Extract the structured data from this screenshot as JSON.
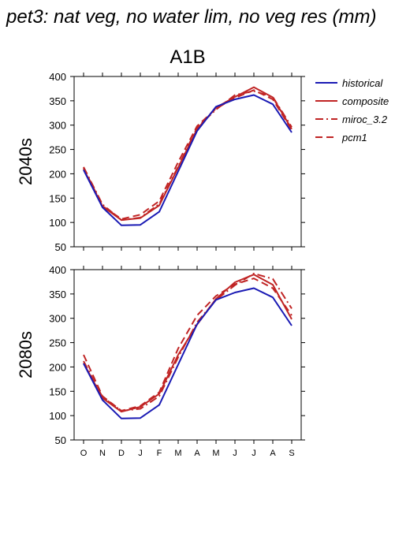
{
  "figure": {
    "title": "pet3: nat veg, no water lim, no veg res (mm)",
    "scenario": "A1B"
  },
  "colors": {
    "historical": "#1a1ab4",
    "projection": "#c02424"
  },
  "chart_data": [
    {
      "type": "line",
      "ylabel": "2040s",
      "categories": [
        "O",
        "N",
        "D",
        "J",
        "F",
        "M",
        "A",
        "M",
        "J",
        "J",
        "A",
        "S"
      ],
      "yticks": [
        50,
        100,
        150,
        200,
        250,
        300,
        350,
        400
      ],
      "ylim": [
        50,
        400
      ],
      "series": [
        {
          "name": "historical",
          "color": "#1a1ab4",
          "dash": "solid",
          "values": [
            208,
            131,
            94,
            95,
            122,
            205,
            288,
            338,
            353,
            362,
            343,
            285
          ]
        },
        {
          "name": "composite",
          "color": "#c02424",
          "dash": "solid",
          "values": [
            210,
            133,
            105,
            109,
            135,
            213,
            292,
            336,
            358,
            378,
            357,
            292
          ]
        },
        {
          "name": "miroc_3.2",
          "color": "#c02424",
          "dash": "dashdot",
          "values": [
            214,
            137,
            105,
            110,
            138,
            215,
            295,
            332,
            362,
            370,
            358,
            296
          ]
        },
        {
          "name": "pcm1",
          "color": "#c02424",
          "dash": "dashed",
          "values": [
            212,
            134,
            107,
            116,
            144,
            224,
            298,
            334,
            356,
            372,
            353,
            290
          ]
        }
      ]
    },
    {
      "type": "line",
      "ylabel": "2080s",
      "categories": [
        "O",
        "N",
        "D",
        "J",
        "F",
        "M",
        "A",
        "M",
        "J",
        "J",
        "A",
        "S"
      ],
      "yticks": [
        50,
        100,
        150,
        200,
        250,
        300,
        350,
        400
      ],
      "ylim": [
        50,
        400
      ],
      "series": [
        {
          "name": "historical",
          "color": "#1a1ab4",
          "dash": "solid",
          "values": [
            207,
            132,
            94,
            95,
            122,
            205,
            288,
            338,
            353,
            362,
            343,
            285
          ]
        },
        {
          "name": "composite",
          "color": "#c02424",
          "dash": "solid",
          "values": [
            208,
            136,
            108,
            118,
            145,
            225,
            287,
            340,
            374,
            390,
            369,
            298
          ]
        },
        {
          "name": "miroc_3.2",
          "color": "#c02424",
          "dash": "dashdot",
          "values": [
            212,
            138,
            110,
            114,
            140,
            220,
            292,
            338,
            368,
            392,
            381,
            320
          ]
        },
        {
          "name": "pcm1",
          "color": "#c02424",
          "dash": "dashed",
          "values": [
            225,
            140,
            110,
            120,
            148,
            238,
            306,
            346,
            370,
            382,
            362,
            306
          ]
        }
      ]
    }
  ],
  "legend": [
    {
      "label": "historical",
      "color": "#1a1ab4",
      "dash": "solid"
    },
    {
      "label": "composite",
      "color": "#c02424",
      "dash": "solid"
    },
    {
      "label": "miroc_3.2",
      "color": "#c02424",
      "dash": "dashdot"
    },
    {
      "label": "pcm1",
      "color": "#c02424",
      "dash": "dashed"
    }
  ]
}
